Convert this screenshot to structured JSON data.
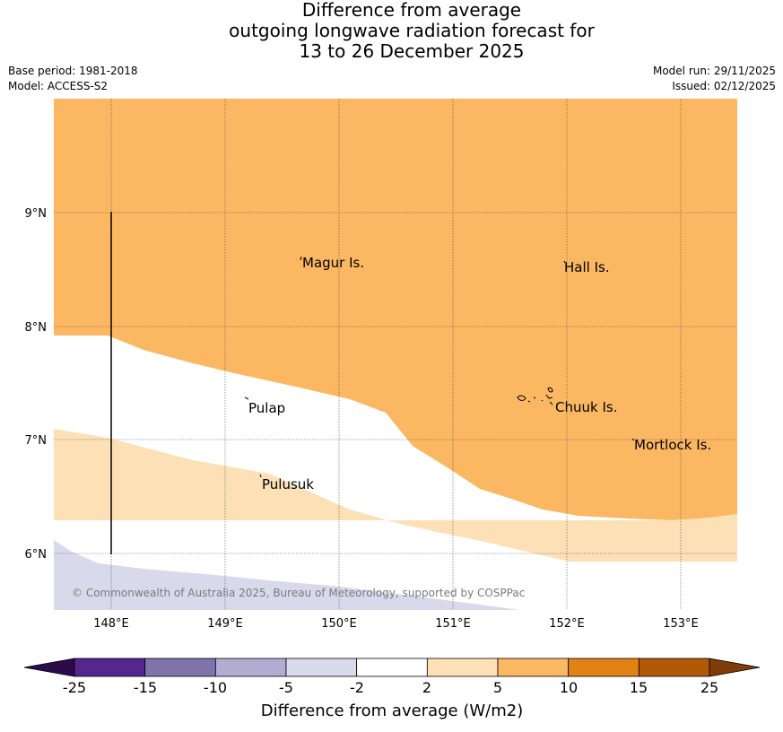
{
  "title": {
    "line1": "Difference from average",
    "line2": "outgoing longwave radiation forecast for",
    "line3": "13 to 26 December 2025"
  },
  "meta_left": {
    "base_period": "Base period: 1981-2018",
    "model": "Model: ACCESS-S2"
  },
  "meta_right": {
    "model_run": "Model run: 29/11/2025",
    "issued": "Issued: 02/12/2025"
  },
  "map": {
    "lat_labels": [
      "9°N",
      "8°N",
      "7°N",
      "6°N"
    ],
    "lon_labels": [
      "148°E",
      "149°E",
      "150°E",
      "151°E",
      "152°E",
      "153°E"
    ],
    "places": {
      "magur": "Magur Is.",
      "hall": "Hall Is.",
      "pulap": "Pulap",
      "chuuk": "Chuuk Is.",
      "mortlock": "Mortlock Is.",
      "pulusuk": "Pulusuk"
    },
    "copyright": "© Commonwealth of Australia 2025, Bureau of Meteorology, supported by COSPPac"
  },
  "legend": {
    "title": "Difference from average (W/m2)",
    "ticks": [
      "-25",
      "-15",
      "-10",
      "-5",
      "-2",
      "2",
      "5",
      "10",
      "15",
      "25"
    ],
    "colors": [
      "#2d0a4a",
      "#54278f",
      "#8073ac",
      "#b2abd2",
      "#d8daeb",
      "#ffffff",
      "#fee0b6",
      "#fbb761",
      "#e08214",
      "#b35806",
      "#7f3b08"
    ]
  }
}
